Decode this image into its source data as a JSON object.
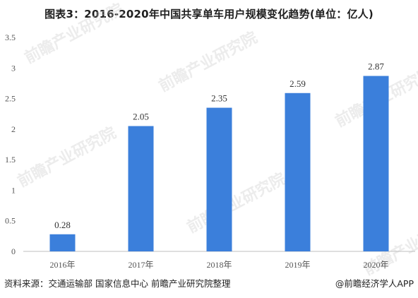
{
  "title": "图表3：2016-2020年中国共享单车用户规模变化趋势(单位：亿人)",
  "source": "资料来源：交通运输部 国家信息中心 前瞻产业研究院整理",
  "brand": "@前瞻经济学人APP",
  "watermark": "前瞻产业研究院",
  "colors": {
    "bar": "#3b7fdb",
    "axis": "#bfbfbf",
    "text": "#222222"
  },
  "chart_data": {
    "type": "bar",
    "categories": [
      "2016年",
      "2017年",
      "2018年",
      "2019年",
      "2020年"
    ],
    "values": [
      0.28,
      2.05,
      2.35,
      2.59,
      2.87
    ],
    "data_labels": [
      "0.28",
      "2.05",
      "2.35",
      "2.59",
      "2.87"
    ],
    "ylim": [
      0,
      3.5
    ],
    "yticks": [
      "0",
      "0.5",
      "1",
      "1.5",
      "2",
      "2.5",
      "3",
      "3.5"
    ],
    "grid": false,
    "legend": "none"
  }
}
